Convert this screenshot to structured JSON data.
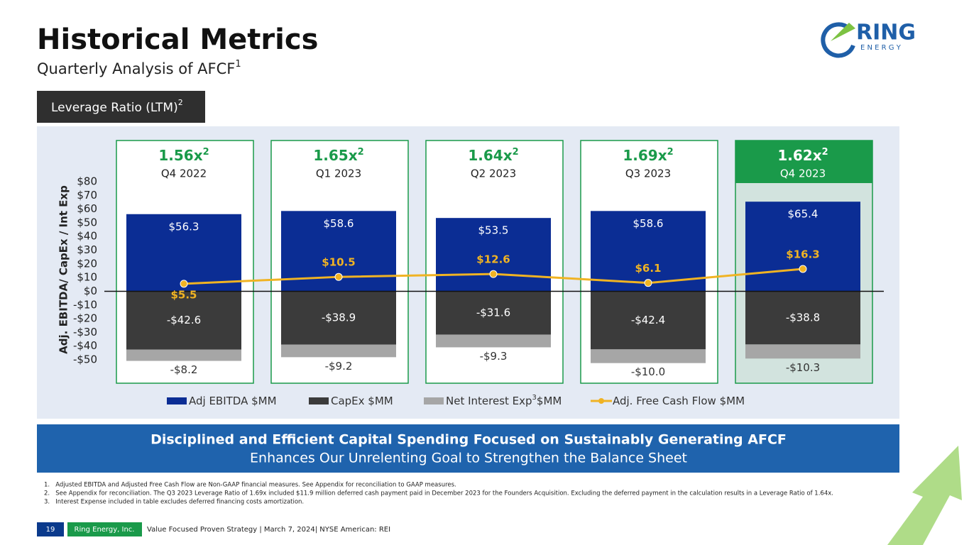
{
  "header": {
    "title": "Historical Metrics",
    "subtitle": "Quarterly Analysis of AFCF",
    "subtitle_sup": "1"
  },
  "logo": {
    "name": "RING",
    "sub": "E N E R G Y"
  },
  "leverage_label": {
    "text": "Leverage Ratio (LTM)",
    "sup": "2"
  },
  "chart_data": {
    "type": "stacked_bar_line",
    "y_axis_label": "Adj. EBITDA/ CapEx / Int Exp",
    "categories": [
      "Q4 2022",
      "Q1 2023",
      "Q2 2023",
      "Q3 2023",
      "Q4 2023"
    ],
    "leverage": {
      "values": [
        1.56,
        1.65,
        1.64,
        1.69,
        1.62
      ],
      "value_labels": [
        "1.56x",
        "1.65x",
        "1.64x",
        "1.69x",
        "1.62x"
      ],
      "sup": "2"
    },
    "series": [
      {
        "name": "Adj EBITDA $MM",
        "color": "#0b2d94",
        "values": [
          56.3,
          58.6,
          53.5,
          58.6,
          65.4
        ],
        "value_labels": [
          "$56.3",
          "$58.6",
          "$53.5",
          "$58.6",
          "$65.4"
        ]
      },
      {
        "name": "CapEx $MM",
        "color": "#3b3b3b",
        "values": [
          -42.6,
          -38.9,
          -31.6,
          -42.4,
          -38.8
        ],
        "value_labels": [
          "-$42.6",
          "-$38.9",
          "-$31.6",
          "-$42.4",
          "-$38.8"
        ]
      },
      {
        "name": "Net Interest Exp",
        "name_sup": "3",
        "name_suffix": "$MM",
        "color": "#a6a6a6",
        "values": [
          -8.2,
          -9.2,
          -9.3,
          -10.0,
          -10.3
        ],
        "value_labels": [
          "-$8.2",
          "-$9.2",
          "-$9.3",
          "-$10.0",
          "-$10.3"
        ]
      },
      {
        "name": "Adj. Free Cash Flow $MM",
        "color": "#f0b323",
        "line": true,
        "values": [
          5.5,
          10.5,
          12.6,
          6.1,
          16.3
        ],
        "value_labels": [
          "$5.5",
          "$10.5",
          "$12.6",
          "$6.1",
          "$16.3"
        ]
      }
    ],
    "ylim": [
      -50,
      80
    ],
    "yticks": [
      {
        "value": 80,
        "label": "$80"
      },
      {
        "value": 70,
        "label": "$70"
      },
      {
        "value": 60,
        "label": "$60"
      },
      {
        "value": 50,
        "label": "$50"
      },
      {
        "value": 40,
        "label": "$40"
      },
      {
        "value": 30,
        "label": "$30"
      },
      {
        "value": 20,
        "label": "$20"
      },
      {
        "value": 10,
        "label": "$10"
      },
      {
        "value": 0,
        "label": "$0"
      },
      {
        "value": -10,
        "label": "-$10"
      },
      {
        "value": -20,
        "label": "-$20"
      },
      {
        "value": -30,
        "label": "-$30"
      },
      {
        "value": -40,
        "label": "-$40"
      },
      {
        "value": -50,
        "label": "-$50"
      }
    ],
    "grid": false
  },
  "banner": {
    "title": "Disciplined and Efficient Capital Spending Focused on Sustainably Generating AFCF",
    "subtitle": "Enhances Our Unrelenting Goal to Strengthen the Balance Sheet"
  },
  "footnotes": [
    "1.   Adjusted EBITDA and Adjusted Free Cash Flow are Non-GAAP financial measures. See Appendix for reconciliation to GAAP measures.",
    "2.   See Appendix for reconciliation. The Q3 2023 Leverage Ratio of 1.69x included $11.9 million deferred cash payment paid in December 2023 for the Founders Acquisition. Excluding the deferred payment in the calculation results in a Leverage Ratio of 1.64x.",
    "3.   Interest Expense included in table excludes deferred financing costs amortization."
  ],
  "footer": {
    "page": "19",
    "company": "Ring Energy, Inc.",
    "text": "Value Focused Proven Strategy | March 7, 2024| NYSE American: REI"
  }
}
